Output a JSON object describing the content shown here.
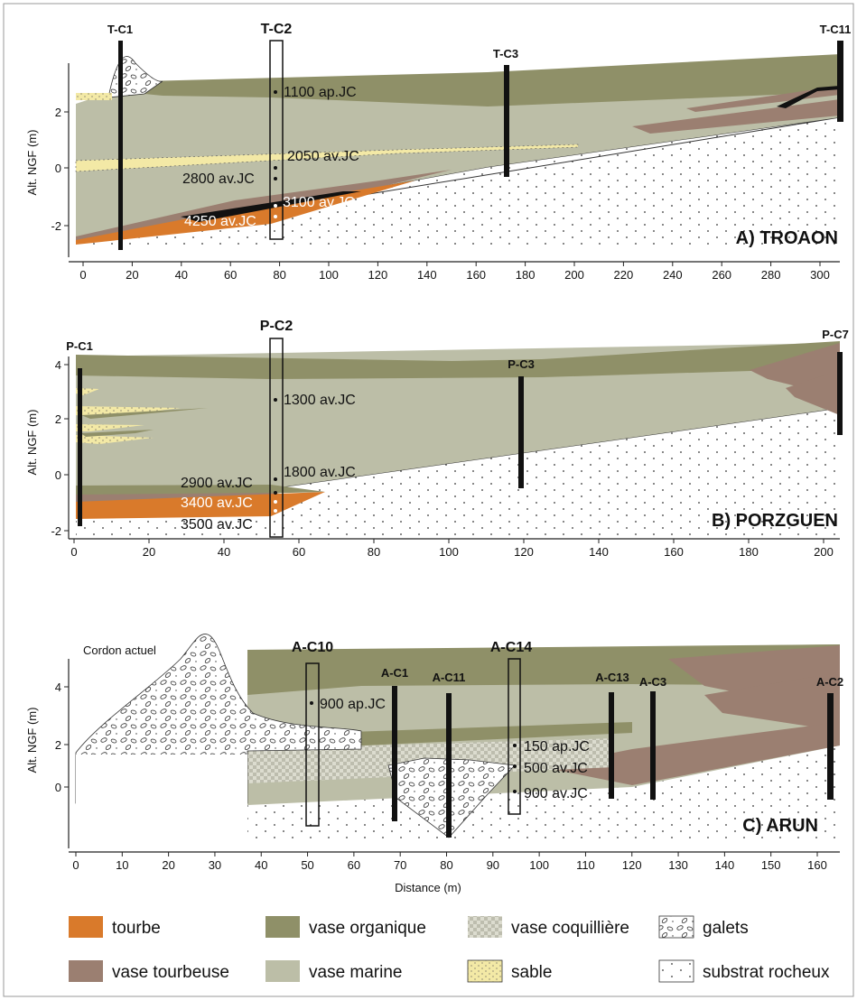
{
  "colors": {
    "tourbe": "#d97a2b",
    "vase_tourbeuse": "#9b7f71",
    "vase_organique": "#8f9068",
    "vase_marine": "#bcbea7",
    "sable": "#f3e9a6",
    "vase_coquilliere": "#d4d4c4",
    "galets": "#ffffff",
    "substrat": "#ffffff",
    "frame": "#888888"
  },
  "panels": {
    "a": {
      "title": "A) TROAON",
      "ylabel": "Alt. NGF (m)",
      "xticks": [
        "0",
        "20",
        "40",
        "60",
        "80",
        "100",
        "120",
        "140",
        "160",
        "180",
        "200",
        "220",
        "240",
        "260",
        "280",
        "300"
      ],
      "yticks": [
        "2",
        "0",
        "-2"
      ],
      "cores": [
        "T-C1",
        "T-C2",
        "T-C3",
        "T-C11"
      ],
      "dates": [
        "1100 ap.JC",
        "2050 av.JC",
        "2800 av.JC",
        "3100 av.JC",
        "4250 av.JC"
      ]
    },
    "b": {
      "title": "B) PORZGUEN",
      "ylabel": "Alt. NGF (m)",
      "xticks": [
        "0",
        "20",
        "40",
        "60",
        "80",
        "100",
        "120",
        "140",
        "160",
        "180",
        "200"
      ],
      "yticks": [
        "4",
        "2",
        "0",
        "-2"
      ],
      "cores": [
        "P-C1",
        "P-C2",
        "P-C3",
        "P-C7"
      ],
      "dates": [
        "1300  av.JC",
        "1800 av.JC",
        "2900 av.JC",
        "3400 av.JC",
        "3500 av.JC"
      ]
    },
    "c": {
      "title": "C) ARUN",
      "ylabel": "Alt. NGF (m)",
      "xlabel": "Distance (m)",
      "cordon": "Cordon actuel",
      "xticks": [
        "0",
        "10",
        "20",
        "30",
        "40",
        "50",
        "60",
        "70",
        "80",
        "90",
        "100",
        "110",
        "120",
        "130",
        "140",
        "150",
        "160"
      ],
      "yticks": [
        "4",
        "2",
        "0"
      ],
      "cores": [
        "A-C10",
        "A-C1",
        "A-C11",
        "A-C14",
        "A-C13",
        "A-C3",
        "A-C2"
      ],
      "dates": [
        "900 ap.JC",
        "150 ap.JC",
        "500 av.JC",
        "900 av.JC"
      ]
    }
  },
  "legend": {
    "tourbe": "tourbe",
    "vase_organique": "vase organique",
    "vase_coquilliere": "vase coquillière",
    "galets": "galets",
    "vase_tourbeuse": "vase tourbeuse",
    "vase_marine": "vase marine",
    "sable": "sable",
    "substrat": "substrat rocheux"
  }
}
